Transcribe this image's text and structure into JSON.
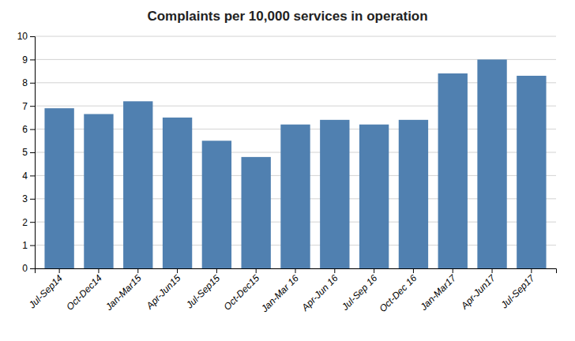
{
  "chart_data": {
    "type": "bar",
    "title": "Complaints per 10,000 services in operation",
    "categories": [
      "Jul-Sep14",
      "Oct-Dec14",
      "Jan-Mar15",
      "Apr-Jun15",
      "Jul-Sep15",
      "Oct-Dec15",
      "Jan-Mar 16",
      "Apr-Jun 16",
      "Jul-Sep 16",
      "Oct-Dec 16",
      "Jan-Mar17",
      "Apr-Jun17",
      "Jul-Sep17"
    ],
    "values": [
      6.9,
      6.65,
      7.2,
      6.5,
      5.5,
      4.8,
      6.2,
      6.4,
      6.2,
      6.4,
      8.4,
      9.0,
      8.3
    ],
    "color": "#5080b0",
    "ylim": [
      0,
      10
    ],
    "yticks": [
      0,
      1,
      2,
      3,
      4,
      5,
      6,
      7,
      8,
      9,
      10
    ],
    "grid": true
  }
}
